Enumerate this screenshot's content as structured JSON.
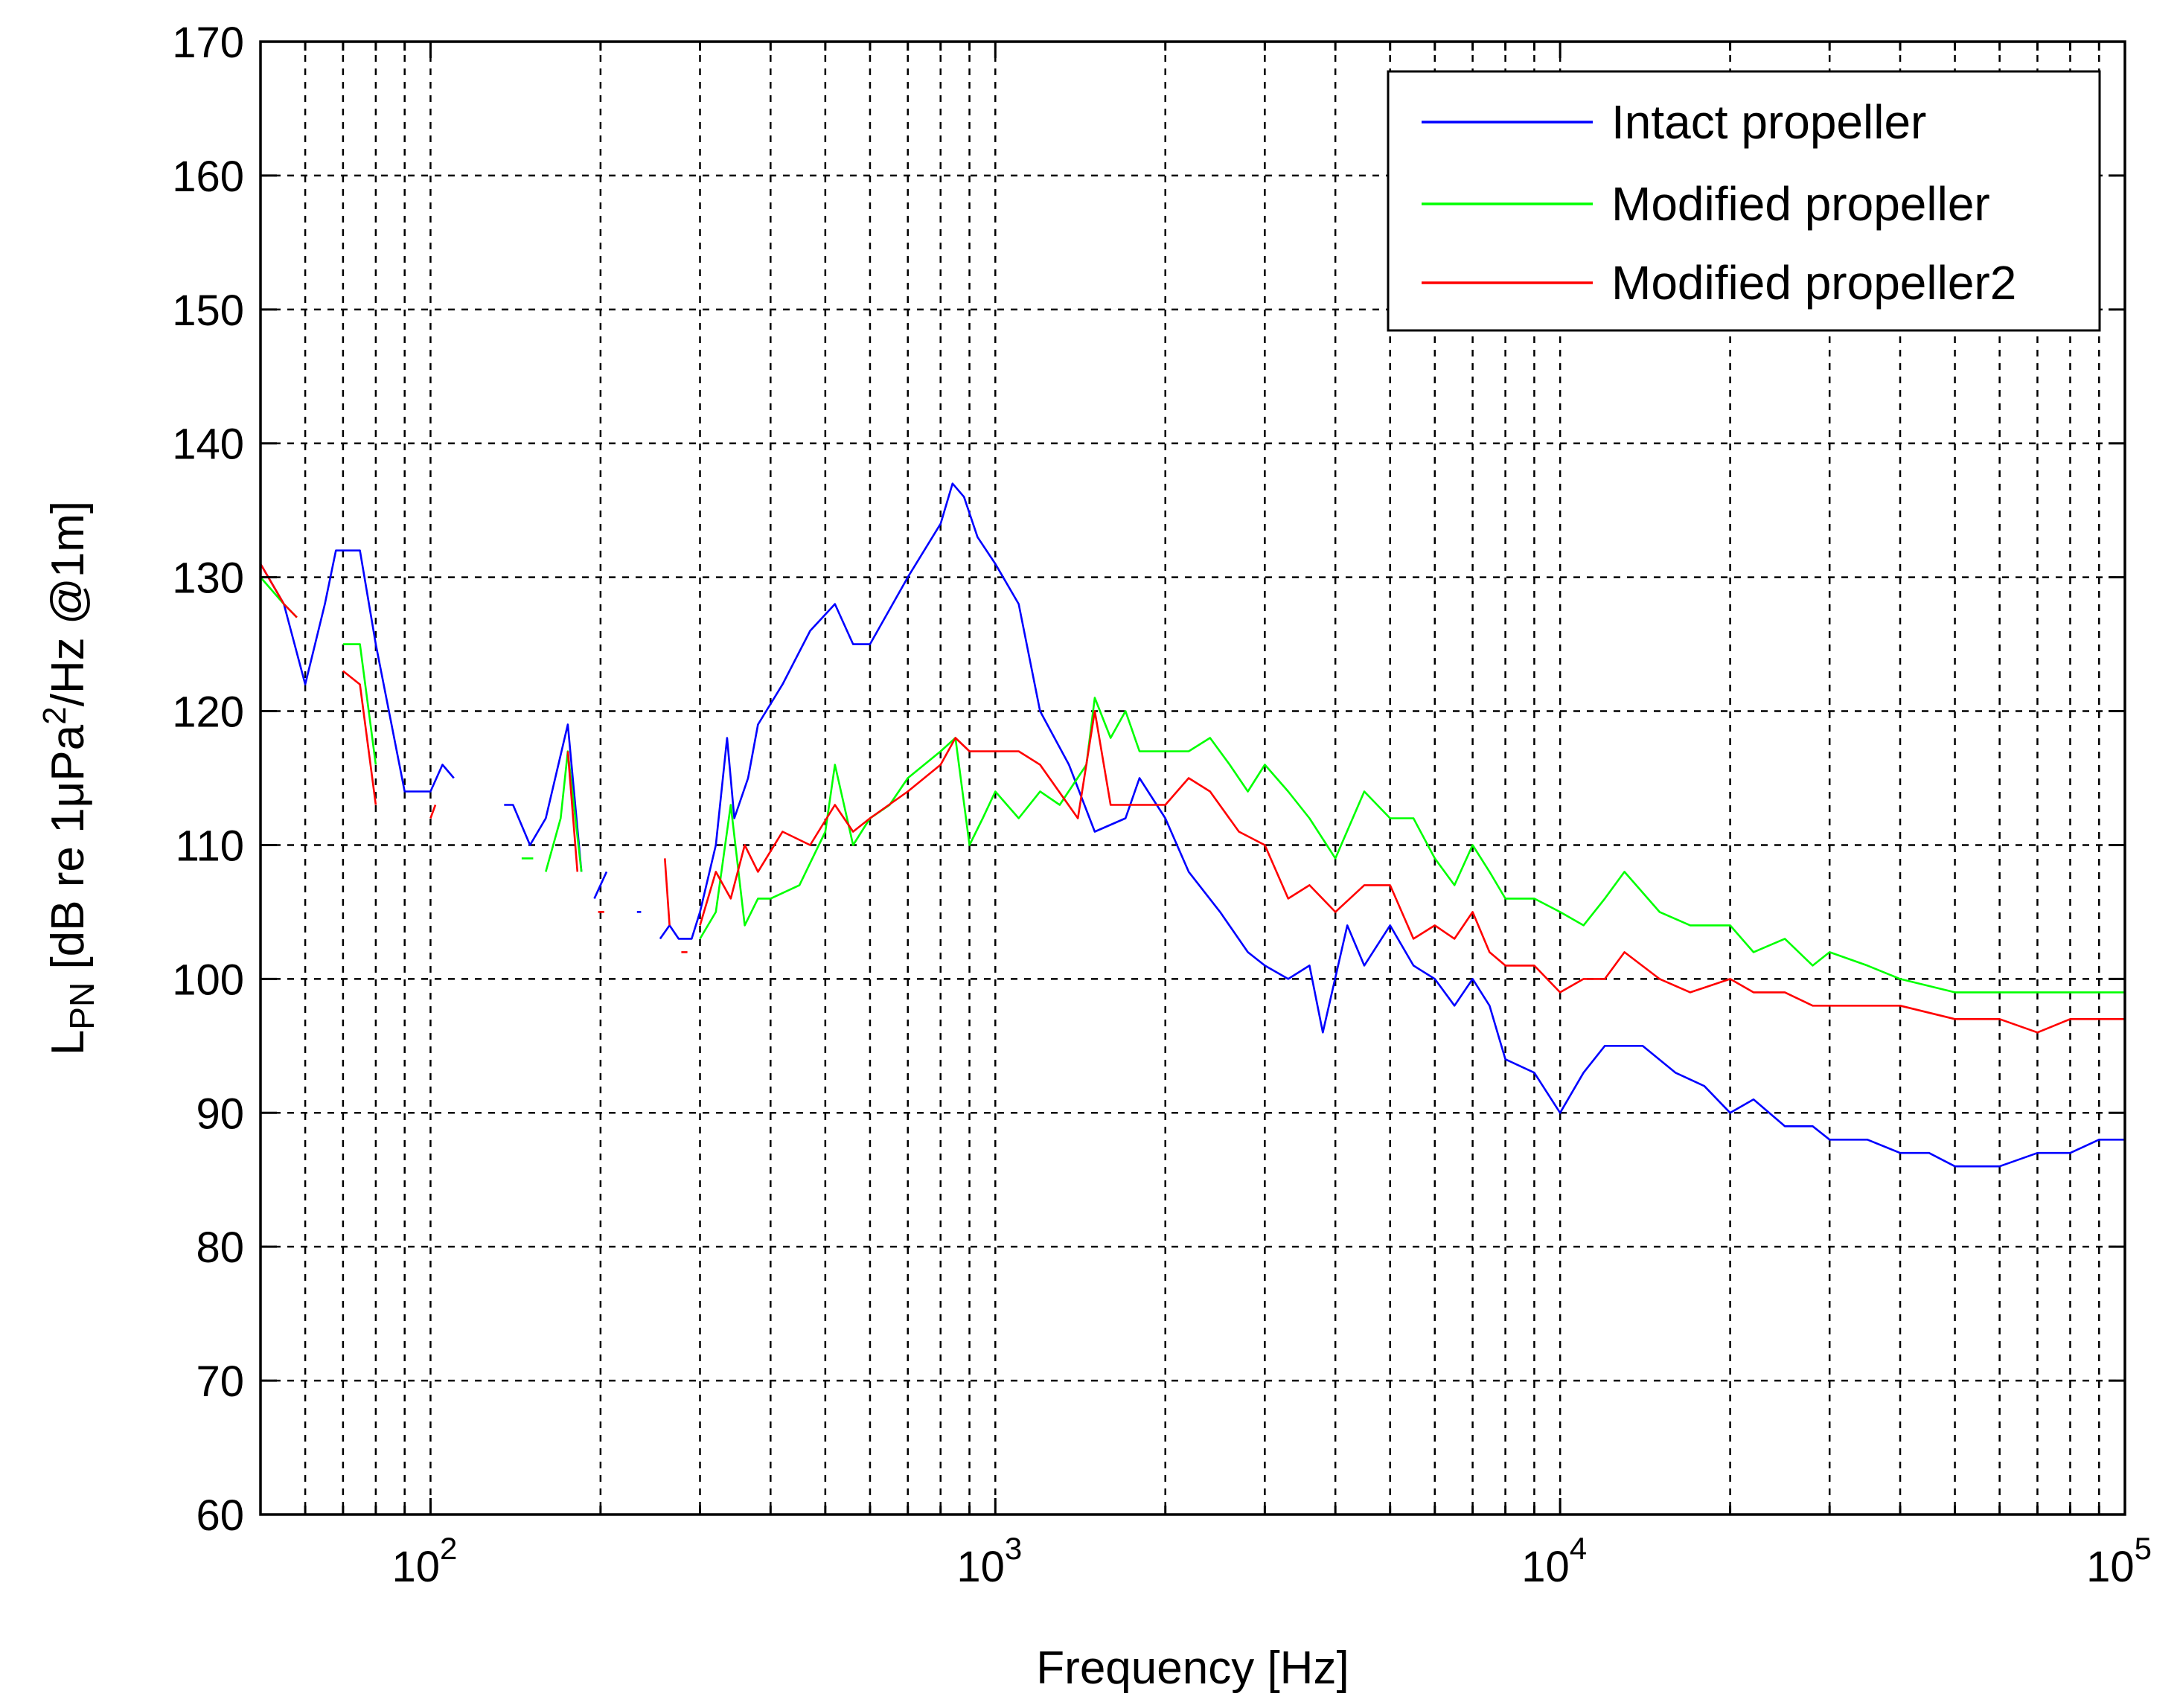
{
  "chart_data": {
    "type": "line",
    "title": "",
    "xlabel": "Frequency [Hz]",
    "ylabel": {
      "prefix": "L",
      "prefix_sub": "PN",
      "middle": " [dB re 1",
      "mu": "μ",
      "unit": "Pa",
      "unit_sup": "2",
      "suffix": "/Hz @1m]"
    },
    "xscale": "log",
    "xlim": [
      50,
      100000
    ],
    "ylim": [
      60,
      170
    ],
    "grid": true,
    "legend_position": "top-right",
    "x_ticks": [
      {
        "value": 100,
        "base": "10",
        "exp": "2"
      },
      {
        "value": 1000,
        "base": "10",
        "exp": "3"
      },
      {
        "value": 10000,
        "base": "10",
        "exp": "4"
      },
      {
        "value": 100000,
        "base": "10",
        "exp": "5"
      }
    ],
    "y_ticks": [
      "60",
      "70",
      "80",
      "90",
      "100",
      "110",
      "120",
      "130",
      "140",
      "150",
      "160",
      "170"
    ],
    "series": [
      {
        "name": "Intact propeller",
        "color": "#0000ff",
        "segments": [
          [
            [
              50,
              131
            ],
            [
              55,
              128
            ],
            [
              60,
              122
            ],
            [
              65,
              128
            ],
            [
              68,
              132
            ],
            [
              75,
              132
            ],
            [
              80,
              125
            ],
            [
              90,
              114
            ],
            [
              100,
              114
            ],
            [
              105,
              116
            ],
            [
              110,
              115
            ]
          ],
          [
            [
              135,
              113
            ],
            [
              140,
              113
            ],
            [
              150,
              110
            ],
            [
              160,
              112
            ],
            [
              175,
              119
            ],
            [
              185,
              108
            ]
          ],
          [
            [
              195,
              106
            ],
            [
              205,
              108
            ]
          ],
          [
            [
              232,
              105
            ],
            [
              236,
              105
            ]
          ],
          [
            [
              255,
              103
            ],
            [
              265,
              104
            ],
            [
              275,
              103
            ],
            [
              290,
              103
            ],
            [
              300,
              105
            ],
            [
              320,
              110
            ],
            [
              335,
              118
            ],
            [
              345,
              112
            ],
            [
              365,
              115
            ],
            [
              380,
              119
            ],
            [
              420,
              122
            ],
            [
              470,
              126
            ],
            [
              520,
              128
            ],
            [
              560,
              125
            ],
            [
              600,
              125
            ],
            [
              700,
              130
            ],
            [
              800,
              134
            ],
            [
              840,
              137
            ],
            [
              880,
              136
            ],
            [
              930,
              133
            ],
            [
              1000,
              131
            ],
            [
              1100,
              128
            ],
            [
              1200,
              120
            ],
            [
              1350,
              116
            ],
            [
              1500,
              111
            ],
            [
              1700,
              112
            ],
            [
              1800,
              115
            ],
            [
              2000,
              112
            ],
            [
              2200,
              108
            ],
            [
              2500,
              105
            ],
            [
              2800,
              102
            ],
            [
              3000,
              101
            ],
            [
              3300,
              100
            ],
            [
              3600,
              101
            ],
            [
              3800,
              96
            ],
            [
              4200,
              104
            ],
            [
              4500,
              101
            ],
            [
              5000,
              104
            ],
            [
              5500,
              101
            ],
            [
              6000,
              100
            ],
            [
              6500,
              98
            ],
            [
              7000,
              100
            ],
            [
              7500,
              98
            ],
            [
              8000,
              94
            ],
            [
              9000,
              93
            ],
            [
              10000,
              90
            ],
            [
              11000,
              93
            ],
            [
              12000,
              95
            ],
            [
              14000,
              95
            ],
            [
              16000,
              93
            ],
            [
              18000,
              92
            ],
            [
              20000,
              90
            ],
            [
              22000,
              91
            ],
            [
              25000,
              89
            ],
            [
              28000,
              89
            ],
            [
              30000,
              88
            ],
            [
              35000,
              88
            ],
            [
              40000,
              87
            ],
            [
              45000,
              87
            ],
            [
              50000,
              86
            ],
            [
              60000,
              86
            ],
            [
              70000,
              87
            ],
            [
              80000,
              87
            ],
            [
              90000,
              88
            ],
            [
              100000,
              88
            ]
          ]
        ]
      },
      {
        "name": "Modified propeller",
        "color": "#00ff00",
        "segments": [
          [
            [
              50,
              130
            ],
            [
              55,
              128
            ],
            [
              58,
              127
            ]
          ],
          [
            [
              70,
              125
            ],
            [
              75,
              125
            ],
            [
              80,
              116
            ]
          ],
          [
            [
              145,
              109
            ],
            [
              152,
              109
            ]
          ],
          [
            [
              160,
              108
            ],
            [
              170,
              112
            ],
            [
              175,
              117
            ],
            [
              185,
              108
            ]
          ],
          [
            [
              300,
              103
            ],
            [
              320,
              105
            ],
            [
              340,
              113
            ],
            [
              360,
              104
            ],
            [
              380,
              106
            ],
            [
              400,
              106
            ],
            [
              450,
              107
            ],
            [
              500,
              111
            ],
            [
              520,
              116
            ],
            [
              560,
              110
            ],
            [
              600,
              112
            ],
            [
              650,
              113
            ],
            [
              700,
              115
            ],
            [
              800,
              117
            ],
            [
              850,
              118
            ],
            [
              900,
              110
            ],
            [
              950,
              112
            ],
            [
              1000,
              114
            ],
            [
              1100,
              112
            ],
            [
              1200,
              114
            ],
            [
              1300,
              113
            ],
            [
              1450,
              116
            ],
            [
              1500,
              121
            ],
            [
              1600,
              118
            ],
            [
              1700,
              120
            ],
            [
              1800,
              117
            ],
            [
              2000,
              117
            ],
            [
              2200,
              117
            ],
            [
              2400,
              118
            ],
            [
              2600,
              116
            ],
            [
              2800,
              114
            ],
            [
              3000,
              116
            ],
            [
              3300,
              114
            ],
            [
              3600,
              112
            ],
            [
              4000,
              109
            ],
            [
              4500,
              114
            ],
            [
              5000,
              112
            ],
            [
              5500,
              112
            ],
            [
              6000,
              109
            ],
            [
              6500,
              107
            ],
            [
              7000,
              110
            ],
            [
              7500,
              108
            ],
            [
              8000,
              106
            ],
            [
              9000,
              106
            ],
            [
              10000,
              105
            ],
            [
              11000,
              104
            ],
            [
              12000,
              106
            ],
            [
              13000,
              108
            ],
            [
              15000,
              105
            ],
            [
              17000,
              104
            ],
            [
              20000,
              104
            ],
            [
              22000,
              102
            ],
            [
              25000,
              103
            ],
            [
              28000,
              101
            ],
            [
              30000,
              102
            ],
            [
              35000,
              101
            ],
            [
              40000,
              100
            ],
            [
              50000,
              99
            ],
            [
              60000,
              99
            ],
            [
              70000,
              99
            ],
            [
              80000,
              99
            ],
            [
              90000,
              99
            ],
            [
              100000,
              99
            ]
          ]
        ]
      },
      {
        "name": "Modified propeller2",
        "color": "#ff0000",
        "segments": [
          [
            [
              50,
              131
            ],
            [
              55,
              128
            ],
            [
              58,
              127
            ]
          ],
          [
            [
              70,
              123
            ],
            [
              75,
              122
            ],
            [
              80,
              113
            ]
          ],
          [
            [
              100,
              112
            ],
            [
              102,
              113
            ]
          ],
          [
            [
              175,
              117
            ],
            [
              182,
              108
            ]
          ],
          [
            [
              198,
              105
            ],
            [
              203,
              105
            ]
          ],
          [
            [
              260,
              109
            ],
            [
              265,
              104
            ]
          ],
          [
            [
              278,
              102
            ],
            [
              285,
              102
            ]
          ],
          [
            [
              300,
              104
            ],
            [
              320,
              108
            ],
            [
              340,
              106
            ],
            [
              360,
              110
            ],
            [
              380,
              108
            ],
            [
              420,
              111
            ],
            [
              470,
              110
            ],
            [
              520,
              113
            ],
            [
              560,
              111
            ],
            [
              600,
              112
            ],
            [
              700,
              114
            ],
            [
              800,
              116
            ],
            [
              850,
              118
            ],
            [
              900,
              117
            ],
            [
              1000,
              117
            ],
            [
              1100,
              117
            ],
            [
              1200,
              116
            ],
            [
              1400,
              112
            ],
            [
              1500,
              120
            ],
            [
              1600,
              113
            ],
            [
              1800,
              113
            ],
            [
              2000,
              113
            ],
            [
              2200,
              115
            ],
            [
              2400,
              114
            ],
            [
              2700,
              111
            ],
            [
              3000,
              110
            ],
            [
              3300,
              106
            ],
            [
              3600,
              107
            ],
            [
              4000,
              105
            ],
            [
              4500,
              107
            ],
            [
              5000,
              107
            ],
            [
              5500,
              103
            ],
            [
              6000,
              104
            ],
            [
              6500,
              103
            ],
            [
              7000,
              105
            ],
            [
              7500,
              102
            ],
            [
              8000,
              101
            ],
            [
              9000,
              101
            ],
            [
              10000,
              99
            ],
            [
              11000,
              100
            ],
            [
              12000,
              100
            ],
            [
              13000,
              102
            ],
            [
              15000,
              100
            ],
            [
              17000,
              99
            ],
            [
              20000,
              100
            ],
            [
              22000,
              99
            ],
            [
              25000,
              99
            ],
            [
              28000,
              98
            ],
            [
              30000,
              98
            ],
            [
              35000,
              98
            ],
            [
              40000,
              98
            ],
            [
              50000,
              97
            ],
            [
              60000,
              97
            ],
            [
              70000,
              96
            ],
            [
              80000,
              97
            ],
            [
              90000,
              97
            ],
            [
              100000,
              97
            ]
          ]
        ]
      }
    ]
  }
}
